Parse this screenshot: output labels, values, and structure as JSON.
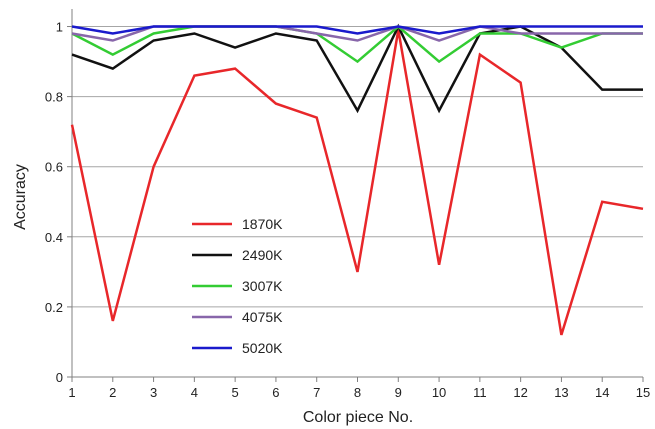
{
  "chart_data": {
    "type": "line",
    "title": "",
    "xlabel": "Color piece No.",
    "ylabel": "Accuracy",
    "x": [
      1,
      2,
      3,
      4,
      5,
      6,
      7,
      8,
      9,
      10,
      11,
      12,
      13,
      14,
      15
    ],
    "xlim": [
      1,
      15
    ],
    "ylim": [
      0,
      1.05
    ],
    "y_ticks": [
      0,
      0.2,
      0.4,
      0.6,
      0.8,
      1
    ],
    "y_tick_labels": [
      "0",
      "0.2",
      "0.4",
      "0.6",
      "0.8",
      "1"
    ],
    "x_tick_labels": [
      "1",
      "2",
      "3",
      "4",
      "5",
      "6",
      "7",
      "8",
      "9",
      "10",
      "11",
      "12",
      "13",
      "14",
      "15"
    ],
    "grid": "horizontal",
    "legend_position": "center-left",
    "series": [
      {
        "name": "1870K",
        "color": "#e8272a",
        "values": [
          0.72,
          0.16,
          0.6,
          0.86,
          0.88,
          0.78,
          0.74,
          0.3,
          0.99,
          0.32,
          0.92,
          0.84,
          0.12,
          0.5,
          0.48
        ]
      },
      {
        "name": "2490K",
        "color": "#111111",
        "values": [
          0.92,
          0.88,
          0.96,
          0.98,
          0.94,
          0.98,
          0.96,
          0.76,
          1.0,
          0.76,
          0.98,
          1.0,
          0.94,
          0.82,
          0.82
        ]
      },
      {
        "name": "3007K",
        "color": "#33cc33",
        "values": [
          0.98,
          0.92,
          0.98,
          1.0,
          1.0,
          1.0,
          0.98,
          0.9,
          1.0,
          0.9,
          0.98,
          0.98,
          0.94,
          0.98,
          0.98
        ]
      },
      {
        "name": "4075K",
        "color": "#8866aa",
        "values": [
          0.98,
          0.96,
          1.0,
          1.0,
          1.0,
          1.0,
          0.98,
          0.96,
          1.0,
          0.96,
          1.0,
          0.98,
          0.98,
          0.98,
          0.98
        ]
      },
      {
        "name": "5020K",
        "color": "#1a1acc",
        "values": [
          1.0,
          0.98,
          1.0,
          1.0,
          1.0,
          1.0,
          1.0,
          0.98,
          1.0,
          0.98,
          1.0,
          1.0,
          1.0,
          1.0,
          1.0
        ]
      }
    ]
  }
}
